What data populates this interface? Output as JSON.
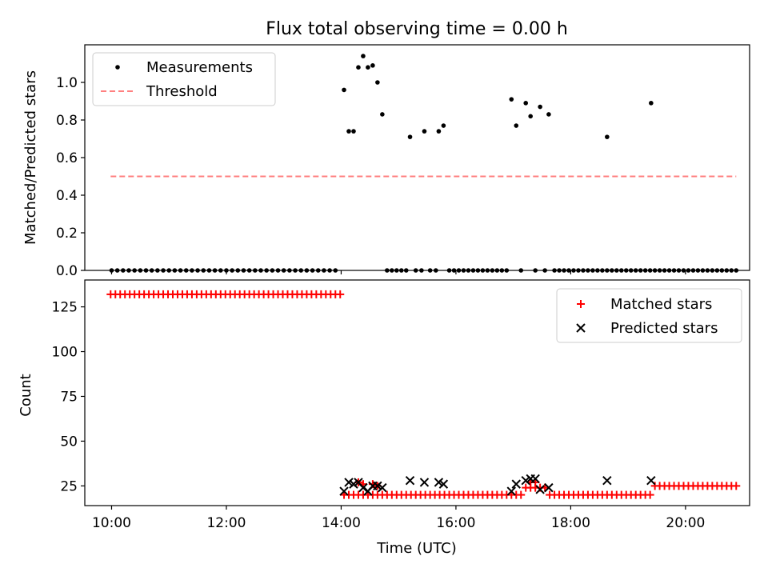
{
  "chart_data": [
    {
      "type": "scatter",
      "title": "Flux total observing time = 0.00 h",
      "xlabel": "",
      "ylabel": "Matched/Predicted stars",
      "xlim": [
        "09:32",
        "21:07"
      ],
      "ylim": [
        0.0,
        1.2
      ],
      "yticks": [
        0.0,
        0.2,
        0.4,
        0.6,
        0.8,
        1.0
      ],
      "legend_position": "top-left",
      "legend": [
        "Measurements",
        "Threshold"
      ],
      "series": [
        {
          "name": "Measurements",
          "color": "#000000",
          "marker": "dot",
          "points": [
            [
              "10:00",
              0
            ],
            [
              "10:06",
              0
            ],
            [
              "10:12",
              0
            ],
            [
              "10:18",
              0
            ],
            [
              "10:24",
              0
            ],
            [
              "10:30",
              0
            ],
            [
              "10:36",
              0
            ],
            [
              "10:42",
              0
            ],
            [
              "10:48",
              0
            ],
            [
              "10:54",
              0
            ],
            [
              "11:00",
              0
            ],
            [
              "11:06",
              0
            ],
            [
              "11:12",
              0
            ],
            [
              "11:18",
              0
            ],
            [
              "11:24",
              0
            ],
            [
              "11:30",
              0
            ],
            [
              "11:36",
              0
            ],
            [
              "11:42",
              0
            ],
            [
              "11:48",
              0
            ],
            [
              "11:54",
              0
            ],
            [
              "12:00",
              0
            ],
            [
              "12:06",
              0
            ],
            [
              "12:12",
              0
            ],
            [
              "12:18",
              0
            ],
            [
              "12:24",
              0
            ],
            [
              "12:30",
              0
            ],
            [
              "12:36",
              0
            ],
            [
              "12:42",
              0
            ],
            [
              "12:48",
              0
            ],
            [
              "12:54",
              0
            ],
            [
              "13:00",
              0
            ],
            [
              "13:06",
              0
            ],
            [
              "13:12",
              0
            ],
            [
              "13:18",
              0
            ],
            [
              "13:24",
              0
            ],
            [
              "13:30",
              0
            ],
            [
              "13:36",
              0
            ],
            [
              "13:42",
              0
            ],
            [
              "13:48",
              0
            ],
            [
              "13:54",
              0
            ],
            [
              "14:03",
              0.96
            ],
            [
              "14:08",
              0.74
            ],
            [
              "14:13",
              0.74
            ],
            [
              "14:18",
              1.08
            ],
            [
              "14:23",
              1.14
            ],
            [
              "14:28",
              1.08
            ],
            [
              "14:33",
              1.09
            ],
            [
              "14:38",
              1.0
            ],
            [
              "14:43",
              0.83
            ],
            [
              "14:48",
              0
            ],
            [
              "14:53",
              0
            ],
            [
              "14:58",
              0
            ],
            [
              "15:03",
              0
            ],
            [
              "15:08",
              0
            ],
            [
              "15:12",
              0.71
            ],
            [
              "15:18",
              0
            ],
            [
              "15:24",
              0
            ],
            [
              "15:27",
              0.74
            ],
            [
              "15:33",
              0
            ],
            [
              "15:39",
              0
            ],
            [
              "15:42",
              0.74
            ],
            [
              "15:47",
              0.77
            ],
            [
              "15:53",
              0
            ],
            [
              "15:58",
              0
            ],
            [
              "16:03",
              0
            ],
            [
              "16:08",
              0
            ],
            [
              "16:13",
              0
            ],
            [
              "16:18",
              0
            ],
            [
              "16:23",
              0
            ],
            [
              "16:28",
              0
            ],
            [
              "16:33",
              0
            ],
            [
              "16:38",
              0
            ],
            [
              "16:43",
              0
            ],
            [
              "16:48",
              0
            ],
            [
              "16:53",
              0
            ],
            [
              "16:58",
              0.91
            ],
            [
              "17:03",
              0.77
            ],
            [
              "17:08",
              0
            ],
            [
              "17:13",
              0.89
            ],
            [
              "17:18",
              0.82
            ],
            [
              "17:23",
              0
            ],
            [
              "17:28",
              0.87
            ],
            [
              "17:33",
              0
            ],
            [
              "17:37",
              0.83
            ],
            [
              "17:43",
              0
            ],
            [
              "17:48",
              0
            ],
            [
              "17:53",
              0
            ],
            [
              "17:58",
              0
            ],
            [
              "18:03",
              0
            ],
            [
              "18:08",
              0
            ],
            [
              "18:13",
              0
            ],
            [
              "18:18",
              0
            ],
            [
              "18:23",
              0
            ],
            [
              "18:28",
              0
            ],
            [
              "18:33",
              0
            ],
            [
              "18:38",
              0
            ],
            [
              "18:38",
              0.71
            ],
            [
              "18:43",
              0
            ],
            [
              "18:48",
              0
            ],
            [
              "18:53",
              0
            ],
            [
              "18:58",
              0
            ],
            [
              "19:03",
              0
            ],
            [
              "19:08",
              0
            ],
            [
              "19:13",
              0
            ],
            [
              "19:18",
              0
            ],
            [
              "19:23",
              0
            ],
            [
              "19:28",
              0
            ],
            [
              "19:24",
              0.89
            ],
            [
              "19:33",
              0
            ],
            [
              "19:38",
              0
            ],
            [
              "19:43",
              0
            ],
            [
              "19:48",
              0
            ],
            [
              "19:53",
              0
            ],
            [
              "19:58",
              0
            ],
            [
              "20:03",
              0
            ],
            [
              "20:08",
              0
            ],
            [
              "20:13",
              0
            ],
            [
              "20:18",
              0
            ],
            [
              "20:23",
              0
            ],
            [
              "20:28",
              0
            ],
            [
              "20:33",
              0
            ],
            [
              "20:38",
              0
            ],
            [
              "20:43",
              0
            ],
            [
              "20:48",
              0
            ],
            [
              "20:53",
              0
            ]
          ]
        },
        {
          "name": "Threshold",
          "color": "#ff8080",
          "style": "dashed",
          "points": [
            [
              "09:59",
              0.5
            ],
            [
              "20:53",
              0.5
            ]
          ]
        }
      ]
    },
    {
      "type": "scatter",
      "xlabel": "Time (UTC)",
      "ylabel": "Count",
      "xlim": [
        "09:32",
        "21:07"
      ],
      "ylim": [
        14,
        140
      ],
      "yticks": [
        25,
        50,
        75,
        100,
        125
      ],
      "xticks": [
        "10:00",
        "12:00",
        "14:00",
        "16:00",
        "18:00",
        "20:00"
      ],
      "legend_position": "top-right",
      "legend": [
        "Matched stars",
        "Predicted stars"
      ],
      "series": [
        {
          "name": "Matched stars",
          "color": "#ff0000",
          "marker": "plus",
          "segments": [
            {
              "from": "09:59",
              "to": "13:59",
              "value": 132
            },
            {
              "from": "14:03",
              "to": "14:43",
              "value": 20
            },
            {
              "from": "14:48",
              "to": "17:08",
              "value": 20
            },
            {
              "from": "17:13",
              "to": "17:33",
              "value": 24
            },
            {
              "from": "17:38",
              "to": "19:23",
              "value": 20
            },
            {
              "from": "19:28",
              "to": "20:53",
              "value": 25
            }
          ],
          "points": [
            [
              "14:18",
              27
            ],
            [
              "14:23",
              26
            ],
            [
              "14:33",
              26
            ],
            [
              "14:38",
              25
            ],
            [
              "17:18",
              27
            ],
            [
              "17:23",
              27
            ]
          ]
        },
        {
          "name": "Predicted stars",
          "color": "#000000",
          "marker": "x",
          "points": [
            [
              "14:03",
              22
            ],
            [
              "14:08",
              27
            ],
            [
              "14:13",
              26
            ],
            [
              "14:18",
              27
            ],
            [
              "14:23",
              24
            ],
            [
              "14:28",
              22
            ],
            [
              "14:33",
              25
            ],
            [
              "14:38",
              25
            ],
            [
              "14:43",
              24
            ],
            [
              "15:12",
              28
            ],
            [
              "15:27",
              27
            ],
            [
              "15:42",
              27
            ],
            [
              "15:47",
              26
            ],
            [
              "16:58",
              22
            ],
            [
              "17:03",
              26
            ],
            [
              "17:13",
              28
            ],
            [
              "17:18",
              29
            ],
            [
              "17:23",
              29
            ],
            [
              "17:28",
              23
            ],
            [
              "17:37",
              24
            ],
            [
              "18:38",
              28
            ],
            [
              "19:24",
              28
            ]
          ]
        }
      ]
    }
  ]
}
